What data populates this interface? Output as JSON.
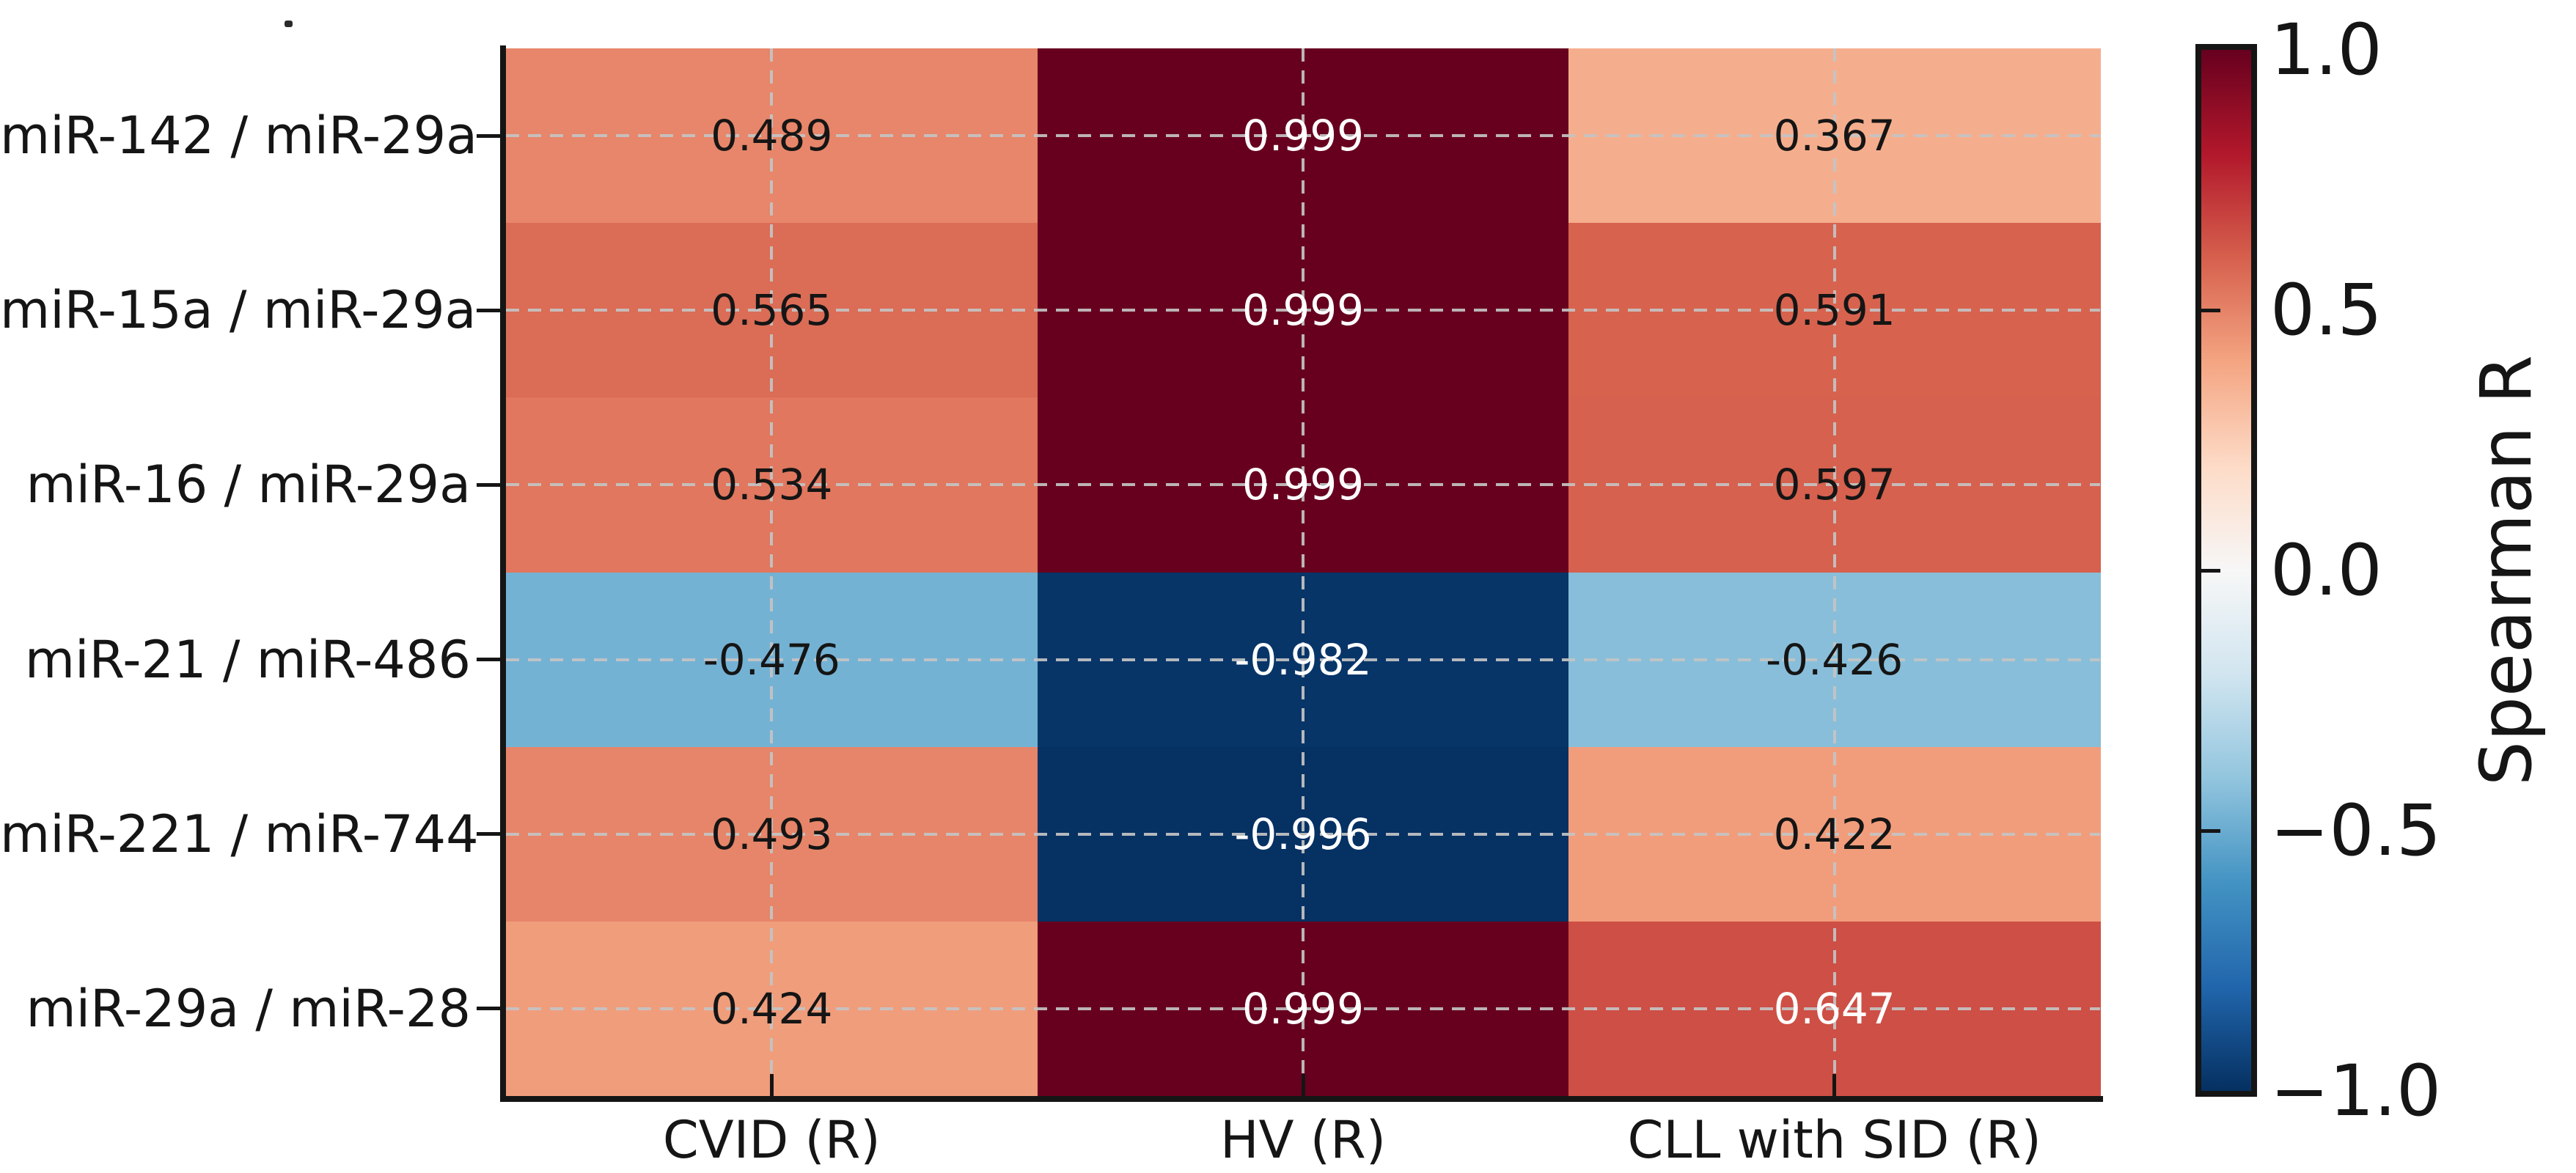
{
  "artifacts": {
    "dot": "."
  },
  "chart_data": {
    "type": "heatmap",
    "title": "",
    "rows": [
      "miR-142 / miR-29a",
      "miR-15a / miR-29a",
      "miR-16 / miR-29a",
      "miR-21 / miR-486",
      "miR-221 / miR-744",
      "miR-29a / miR-28"
    ],
    "columns": [
      "CVID (R)",
      "HV (R)",
      "CLL with SID (R)"
    ],
    "values": [
      [
        0.489,
        0.999,
        0.367
      ],
      [
        0.565,
        0.999,
        0.591
      ],
      [
        0.534,
        0.999,
        0.597
      ],
      [
        -0.476,
        -0.982,
        -0.426
      ],
      [
        0.493,
        -0.996,
        0.422
      ],
      [
        0.424,
        0.999,
        0.647
      ]
    ],
    "cell_labels": [
      [
        "0.489",
        "0.999",
        "0.367"
      ],
      [
        "0.565",
        "0.999",
        "0.591"
      ],
      [
        "0.534",
        "0.999",
        "0.597"
      ],
      [
        "-0.476",
        "-0.982",
        "-0.426"
      ],
      [
        "0.493",
        "-0.996",
        "0.422"
      ],
      [
        "0.424",
        "0.999",
        "0.647"
      ]
    ],
    "cell_colors": [
      [
        "#e7866a",
        "#67001f",
        "#f5ae8d"
      ],
      [
        "#db6c56",
        "#67001f",
        "#d7634f"
      ],
      [
        "#e0775e",
        "#67001f",
        "#d6614e"
      ],
      [
        "#74b2d4",
        "#083568",
        "#88beda"
      ],
      [
        "#e68569",
        "#063163",
        "#f19d7c"
      ],
      [
        "#f09d7c",
        "#67001f",
        "#ce4f45"
      ]
    ],
    "cell_text_colors": [
      [
        "#151515",
        "#ffffff",
        "#151515"
      ],
      [
        "#151515",
        "#ffffff",
        "#151515"
      ],
      [
        "#151515",
        "#ffffff",
        "#151515"
      ],
      [
        "#151515",
        "#ffffff",
        "#151515"
      ],
      [
        "#151515",
        "#ffffff",
        "#151515"
      ],
      [
        "#151515",
        "#ffffff",
        "#ffffff"
      ]
    ],
    "value_range": [
      -1,
      1
    ],
    "grid": {
      "show": true,
      "style": "dashed",
      "color": "#c4c4c4"
    },
    "colorbar": {
      "label": "Spearman R",
      "tick_labels": [
        "1.0",
        "0.5",
        "0.0",
        "−0.5",
        "−1.0"
      ],
      "tick_values": [
        1.0,
        0.5,
        0.0,
        -0.5,
        -1.0
      ],
      "gradient_top_to_bottom": [
        "#67001f",
        "#b2182b",
        "#d6604d",
        "#f4a582",
        "#fddbc7",
        "#f7f7f7",
        "#d1e5f0",
        "#92c5de",
        "#4393c3",
        "#2166ac",
        "#053061"
      ]
    }
  }
}
